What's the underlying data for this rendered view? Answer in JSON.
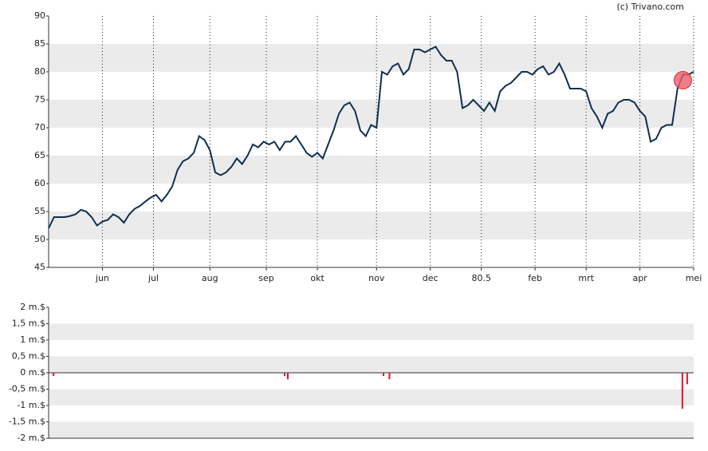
{
  "chart_data": [
    {
      "type": "line",
      "credit": "(c) Trivano.com",
      "color": "#0d2f4f",
      "grid": "bands",
      "xlim": [
        0,
        120
      ],
      "xticks": [
        {
          "value": 10,
          "label": "jun"
        },
        {
          "value": 19.5,
          "label": "jul"
        },
        {
          "value": 30,
          "label": "aug"
        },
        {
          "value": 40.5,
          "label": "sep"
        },
        {
          "value": 50,
          "label": "okt"
        },
        {
          "value": 61,
          "label": "nov"
        },
        {
          "value": 71,
          "label": "dec"
        },
        80.5,
        {
          "value": 90.5,
          "label": "feb"
        },
        {
          "value": 100,
          "label": "mrt"
        },
        {
          "value": 110,
          "label": "apr"
        },
        {
          "value": 120,
          "label": "mei"
        }
      ],
      "ylim": [
        45,
        90
      ],
      "yticks": [
        45,
        50,
        55,
        60,
        65,
        70,
        75,
        80,
        85,
        90
      ],
      "values": [
        52,
        54,
        54,
        54,
        54.2,
        54.5,
        55.3,
        55,
        54,
        52.5,
        53.2,
        53.5,
        54.5,
        54,
        53,
        54.5,
        55.5,
        56,
        56.8,
        57.5,
        58,
        56.8,
        58,
        59.5,
        62.5,
        64,
        64.5,
        65.5,
        68.5,
        67.8,
        66,
        62,
        61.5,
        62,
        63,
        64.5,
        63.5,
        65,
        67,
        66.5,
        67.5,
        67,
        67.5,
        66,
        67.5,
        67.5,
        68.5,
        67,
        65.5,
        64.8,
        65.5,
        64.5,
        67,
        69.5,
        72.5,
        74,
        74.5,
        73,
        69.5,
        68.5,
        70.5,
        70,
        80,
        79.5,
        81,
        81.5,
        79.5,
        80.5,
        84,
        84,
        83.5,
        84,
        84.5,
        83,
        82,
        82,
        80,
        73.5,
        74,
        75,
        74,
        73,
        74.5,
        73,
        76.5,
        77.5,
        78,
        79,
        80,
        80,
        79.5,
        80.5,
        81,
        79.5,
        80,
        81.5,
        79.5,
        77,
        77,
        77,
        76.5,
        73.5,
        72,
        70,
        72.5,
        73,
        74.5,
        75,
        75,
        74.5,
        73,
        72,
        67.5,
        68,
        70,
        70.5,
        70.5,
        77,
        79.5,
        79.5,
        80
      ],
      "marker": {
        "x": 118,
        "y": 78.5,
        "color": "#f05a6a"
      }
    },
    {
      "type": "bar",
      "color": "#e8112d",
      "grid": "bands",
      "xlim": [
        0,
        120
      ],
      "ylim": [
        -2,
        2
      ],
      "yticks": [
        {
          "value": -2,
          "label": "-2 m.$"
        },
        {
          "value": -1.5,
          "label": "-1,5 m.$"
        },
        {
          "value": -1,
          "label": "-1 m.$"
        },
        {
          "value": -0.5,
          "label": "-0,5 m.$"
        },
        {
          "value": 0,
          "label": "0 m.$"
        },
        {
          "value": 0.5,
          "label": "0,5 m.$"
        },
        {
          "value": 1,
          "label": "1 m.$"
        },
        {
          "value": 1.5,
          "label": "1,5 m.$"
        },
        {
          "value": 2,
          "label": "2 m.$"
        }
      ],
      "x": [
        0.9,
        43.9,
        44.5,
        62.3,
        63.4,
        117.9,
        118.8
      ],
      "values": [
        -0.1,
        -0.1,
        -0.2,
        -0.1,
        -0.2,
        -1.1,
        -0.35
      ]
    }
  ]
}
